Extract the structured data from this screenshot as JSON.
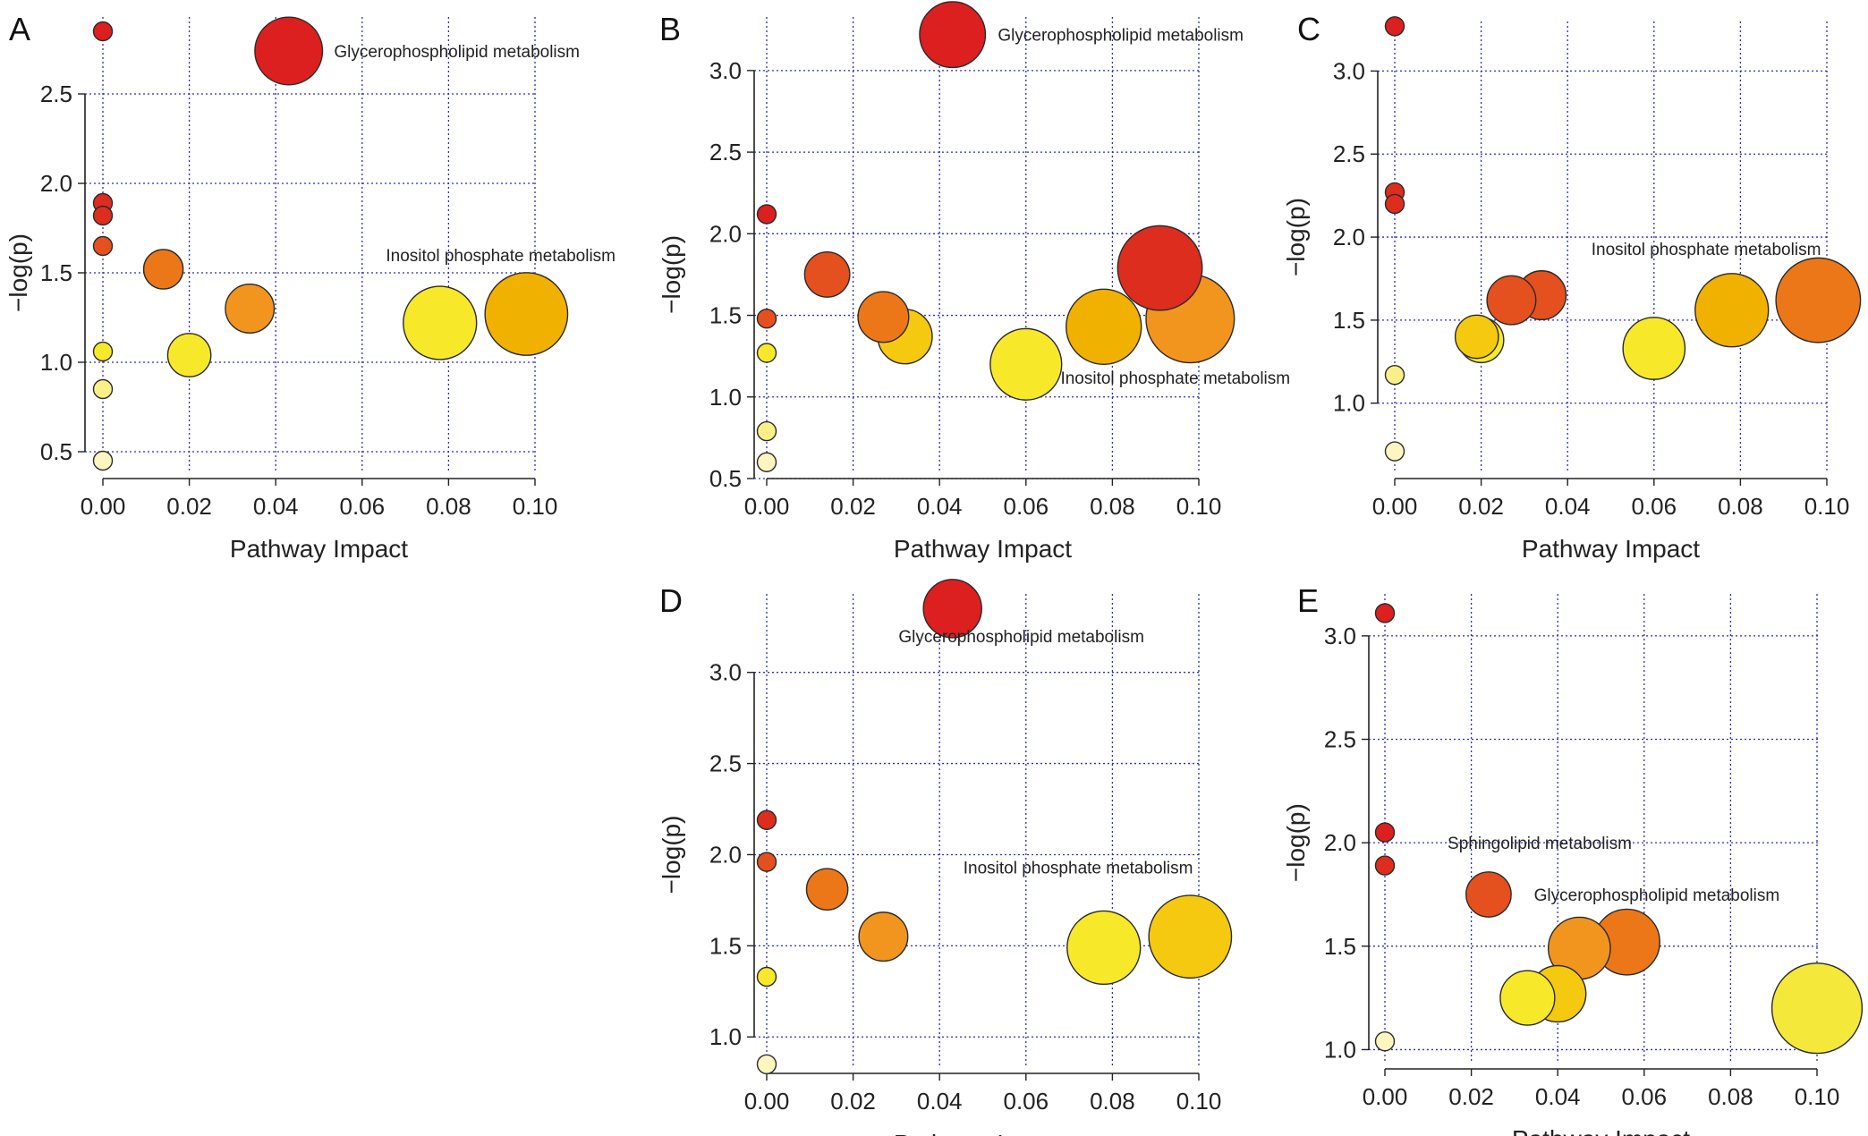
{
  "colors": {
    "grid": "#2b2bc8",
    "palette": [
      "#fff5bf",
      "#f7e92a",
      "#f4c90f",
      "#f1b100",
      "#f2951f",
      "#ec7718",
      "#e4501e",
      "#dc2d1f",
      "#dc1f1f"
    ]
  },
  "chart_data": [
    {
      "panel": "A",
      "type": "scatter",
      "xlabel": "Pathway Impact",
      "ylabel": "−log(p)",
      "xlim": [
        0.0,
        0.1
      ],
      "ylim": [
        0.4,
        2.95
      ],
      "xticks": [
        0.0,
        0.02,
        0.04,
        0.06,
        0.08,
        0.1
      ],
      "xtick_labels": [
        "0.00",
        "0.02",
        "0.04",
        "0.06",
        "0.08",
        "0.10"
      ],
      "yticks": [
        0.5,
        1.0,
        1.5,
        2.0,
        2.5
      ],
      "ytick_labels": [
        "0.5",
        "1.0",
        "1.5",
        "2.0",
        "2.5"
      ],
      "grid": true,
      "points": [
        {
          "x": 0.0,
          "y": 2.85,
          "size": 1,
          "color": "#dc1f1f"
        },
        {
          "x": 0.043,
          "y": 2.74,
          "size": 3.6,
          "color": "#dc1f1f"
        },
        {
          "x": 0.0,
          "y": 1.89,
          "size": 1,
          "color": "#dc2d1f"
        },
        {
          "x": 0.0,
          "y": 1.82,
          "size": 1,
          "color": "#dc2d1f"
        },
        {
          "x": 0.0,
          "y": 1.65,
          "size": 1,
          "color": "#e4501e"
        },
        {
          "x": 0.014,
          "y": 1.52,
          "size": 2.1,
          "color": "#ec7718"
        },
        {
          "x": 0.034,
          "y": 1.3,
          "size": 2.6,
          "color": "#f2951f"
        },
        {
          "x": 0.0,
          "y": 1.06,
          "size": 1,
          "color": "#f7e92a"
        },
        {
          "x": 0.02,
          "y": 1.04,
          "size": 2.3,
          "color": "#f7e92a"
        },
        {
          "x": 0.078,
          "y": 1.22,
          "size": 3.9,
          "color": "#f7e92a"
        },
        {
          "x": 0.098,
          "y": 1.27,
          "size": 4.4,
          "color": "#f1b100"
        },
        {
          "x": 0.0,
          "y": 0.85,
          "size": 1,
          "color": "#fbf088"
        },
        {
          "x": 0.0,
          "y": 0.45,
          "size": 1,
          "color": "#fff5bf"
        }
      ],
      "annotations": [
        {
          "text": "Glycerophospholipid metabolism",
          "x": 0.0535,
          "y": 2.74
        },
        {
          "text": "Inositol phosphate metabolism",
          "x": 0.0655,
          "y": 1.6
        }
      ]
    },
    {
      "panel": "B",
      "type": "scatter",
      "xlabel": "Pathway Impact",
      "ylabel": "−log(p)",
      "xlim": [
        0.0,
        0.1
      ],
      "ylim": [
        0.5,
        3.35
      ],
      "xticks": [
        0.0,
        0.02,
        0.04,
        0.06,
        0.08,
        0.1
      ],
      "xtick_labels": [
        "0.00",
        "0.02",
        "0.04",
        "0.06",
        "0.08",
        "0.10"
      ],
      "yticks": [
        0.5,
        1.0,
        1.5,
        2.0,
        2.5,
        3.0
      ],
      "ytick_labels": [
        "0.5",
        "1.0",
        "1.5",
        "2.0",
        "2.5",
        "3.0"
      ],
      "grid": true,
      "points": [
        {
          "x": 0.043,
          "y": 3.22,
          "size": 3.5,
          "color": "#dc1f1f"
        },
        {
          "x": 0.0,
          "y": 2.12,
          "size": 1,
          "color": "#dc1f1f"
        },
        {
          "x": 0.014,
          "y": 1.75,
          "size": 2.4,
          "color": "#e4501e"
        },
        {
          "x": 0.091,
          "y": 1.79,
          "size": 4.5,
          "color": "#dc2d1f"
        },
        {
          "x": 0.0,
          "y": 1.48,
          "size": 1,
          "color": "#e4501e"
        },
        {
          "x": 0.027,
          "y": 1.49,
          "size": 2.7,
          "color": "#ec7718"
        },
        {
          "x": 0.032,
          "y": 1.37,
          "size": 2.9,
          "color": "#f4c90f"
        },
        {
          "x": 0.078,
          "y": 1.43,
          "size": 4.0,
          "color": "#f1b100"
        },
        {
          "x": 0.098,
          "y": 1.48,
          "size": 4.7,
          "color": "#f2951f"
        },
        {
          "x": 0.06,
          "y": 1.2,
          "size": 3.8,
          "color": "#f7e92a"
        },
        {
          "x": 0.0,
          "y": 1.27,
          "size": 1,
          "color": "#f7e92a"
        },
        {
          "x": 0.0,
          "y": 0.79,
          "size": 1,
          "color": "#fbf088"
        },
        {
          "x": 0.0,
          "y": 0.6,
          "size": 1,
          "color": "#fff5bf"
        }
      ],
      "annotations": [
        {
          "text": "Glycerophospholipid metabolism",
          "x": 0.0535,
          "y": 3.22
        },
        {
          "text": "Inositol phosphate metabolism",
          "x": 0.068,
          "y": 1.12
        }
      ]
    },
    {
      "panel": "C",
      "type": "scatter",
      "xlabel": "Pathway Impact",
      "ylabel": "−log(p)",
      "xlim": [
        0.0,
        0.1
      ],
      "ylim": [
        0.6,
        3.32
      ],
      "xticks": [
        0.0,
        0.02,
        0.04,
        0.06,
        0.08,
        0.1
      ],
      "xtick_labels": [
        "0.00",
        "0.02",
        "0.04",
        "0.06",
        "0.08",
        "0.10"
      ],
      "yticks": [
        1.0,
        1.5,
        2.0,
        2.5,
        3.0
      ],
      "ytick_labels": [
        "1.0",
        "1.5",
        "2.0",
        "2.5",
        "3.0"
      ],
      "grid": true,
      "points": [
        {
          "x": 0.0,
          "y": 3.27,
          "size": 1,
          "color": "#dc1f1f"
        },
        {
          "x": 0.0,
          "y": 2.27,
          "size": 1,
          "color": "#dc2d1f"
        },
        {
          "x": 0.0,
          "y": 2.2,
          "size": 1,
          "color": "#dc2d1f"
        },
        {
          "x": 0.034,
          "y": 1.65,
          "size": 2.6,
          "color": "#e4501e"
        },
        {
          "x": 0.027,
          "y": 1.62,
          "size": 2.6,
          "color": "#e4501e"
        },
        {
          "x": 0.019,
          "y": 1.4,
          "size": 2.3,
          "color": "#f4c90f"
        },
        {
          "x": 0.02,
          "y": 1.38,
          "size": 2.4,
          "color": "#f7e92a"
        },
        {
          "x": 0.06,
          "y": 1.33,
          "size": 3.3,
          "color": "#f7e92a"
        },
        {
          "x": 0.078,
          "y": 1.56,
          "size": 3.9,
          "color": "#f1b100"
        },
        {
          "x": 0.098,
          "y": 1.62,
          "size": 4.5,
          "color": "#ec7718"
        },
        {
          "x": 0.0,
          "y": 1.17,
          "size": 1,
          "color": "#fbf088"
        },
        {
          "x": 0.0,
          "y": 0.71,
          "size": 1,
          "color": "#fff5bf"
        }
      ],
      "annotations": [
        {
          "text": "Inositol phosphate metabolism",
          "x": 0.0455,
          "y": 1.93
        }
      ]
    },
    {
      "panel": "D",
      "type": "scatter",
      "xlabel": "Pathway Impact",
      "ylabel": "−log(p)",
      "xlim": [
        0.0,
        0.1
      ],
      "ylim": [
        0.8,
        3.45
      ],
      "xticks": [
        0.0,
        0.02,
        0.04,
        0.06,
        0.08,
        0.1
      ],
      "xtick_labels": [
        "0.00",
        "0.02",
        "0.04",
        "0.06",
        "0.08",
        "0.10"
      ],
      "yticks": [
        1.0,
        1.5,
        2.0,
        2.5,
        3.0
      ],
      "ytick_labels": [
        "1.0",
        "1.5",
        "2.0",
        "2.5",
        "3.0"
      ],
      "grid": true,
      "points": [
        {
          "x": 0.043,
          "y": 3.35,
          "size": 3.1,
          "color": "#dc1f1f"
        },
        {
          "x": 0.0,
          "y": 2.19,
          "size": 1,
          "color": "#dc2d1f"
        },
        {
          "x": 0.0,
          "y": 1.96,
          "size": 1,
          "color": "#e4501e"
        },
        {
          "x": 0.014,
          "y": 1.81,
          "size": 2.2,
          "color": "#ec7718"
        },
        {
          "x": 0.027,
          "y": 1.55,
          "size": 2.6,
          "color": "#f2951f"
        },
        {
          "x": 0.078,
          "y": 1.49,
          "size": 3.9,
          "color": "#f7e92a"
        },
        {
          "x": 0.098,
          "y": 1.55,
          "size": 4.4,
          "color": "#f4c90f"
        },
        {
          "x": 0.0,
          "y": 1.33,
          "size": 1,
          "color": "#f7e92a"
        },
        {
          "x": 0.0,
          "y": 0.85,
          "size": 1,
          "color": "#fff5bf"
        }
      ],
      "annotations": [
        {
          "text": "Glycerophospholipid metabolism",
          "x": 0.0305,
          "y": 3.2
        },
        {
          "text": "Inositol phosphate metabolism",
          "x": 0.0455,
          "y": 1.93
        }
      ]
    },
    {
      "panel": "E",
      "type": "scatter",
      "xlabel": "Pathway Impact",
      "ylabel": "−log(p)",
      "xlim": [
        0.0,
        0.1
      ],
      "ylim": [
        0.95,
        3.22
      ],
      "xticks": [
        0.0,
        0.02,
        0.04,
        0.06,
        0.08,
        0.1
      ],
      "xtick_labels": [
        "0.00",
        "0.02",
        "0.04",
        "0.06",
        "0.08",
        "0.10"
      ],
      "yticks": [
        1.0,
        1.5,
        2.0,
        2.5,
        3.0
      ],
      "ytick_labels": [
        "1.0",
        "1.5",
        "2.0",
        "2.5",
        "3.0"
      ],
      "grid": true,
      "points": [
        {
          "x": 0.0,
          "y": 3.11,
          "size": 1,
          "color": "#dc1f1f"
        },
        {
          "x": 0.0,
          "y": 2.05,
          "size": 1,
          "color": "#dc1f1f"
        },
        {
          "x": 0.0,
          "y": 1.89,
          "size": 1,
          "color": "#dc2d1f"
        },
        {
          "x": 0.024,
          "y": 1.75,
          "size": 2.4,
          "color": "#e4501e"
        },
        {
          "x": 0.056,
          "y": 1.52,
          "size": 3.5,
          "color": "#ec7718"
        },
        {
          "x": 0.045,
          "y": 1.49,
          "size": 3.3,
          "color": "#f2951f"
        },
        {
          "x": 0.04,
          "y": 1.27,
          "size": 3.0,
          "color": "#f4c90f"
        },
        {
          "x": 0.033,
          "y": 1.25,
          "size": 2.9,
          "color": "#f7e92a"
        },
        {
          "x": 0.1,
          "y": 1.2,
          "size": 4.8,
          "color": "#f4e93a"
        },
        {
          "x": 0.0,
          "y": 1.04,
          "size": 1,
          "color": "#fff5bf"
        }
      ],
      "annotations": [
        {
          "text": "Sphingolipid metabolism",
          "x": 0.0145,
          "y": 2.0
        },
        {
          "text": "Glycerophospholipid metabolism",
          "x": 0.0345,
          "y": 1.75
        }
      ]
    }
  ]
}
